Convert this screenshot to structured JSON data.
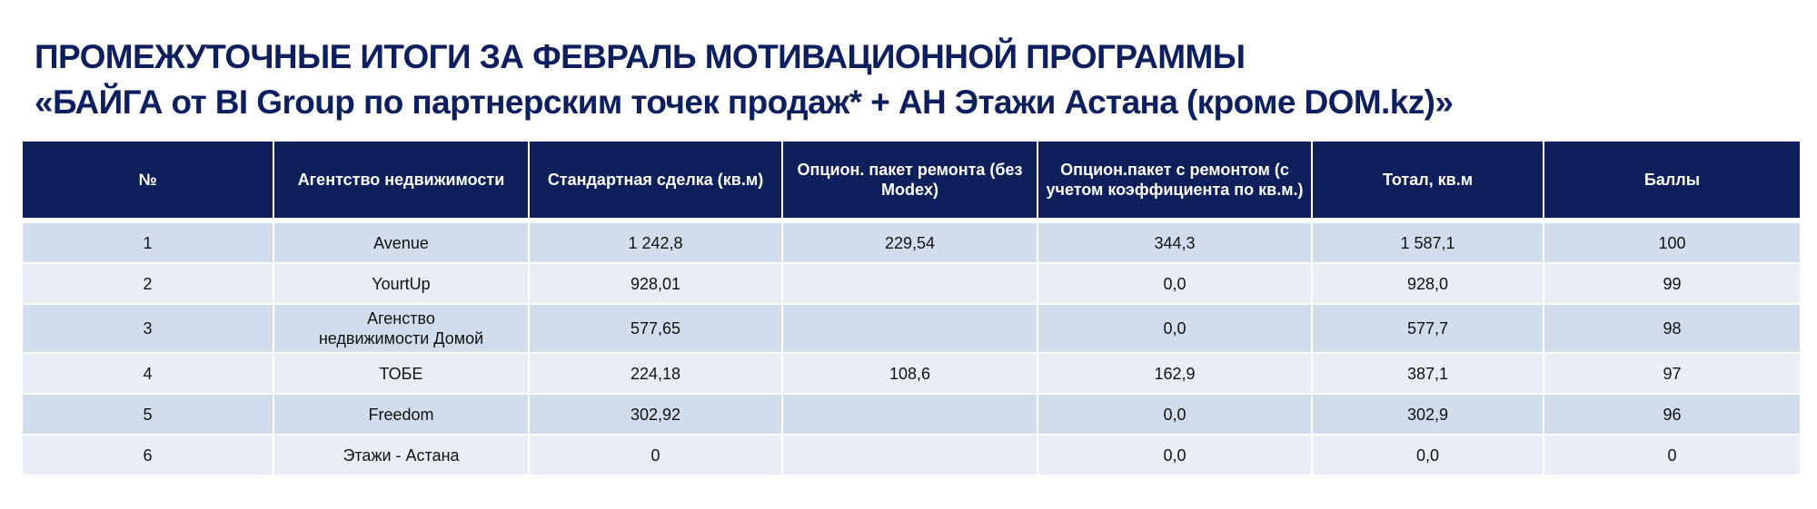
{
  "title": {
    "line1": "ПРОМЕЖУТОЧНЫЕ ИТОГИ ЗА ФЕВРАЛЬ МОТИВАЦИОННОЙ ПРОГРАММЫ",
    "line2": "«БАЙГА  от BI Group по партнерским точек продаж* + АН Этажи Астана (кроме DOM.kz)»"
  },
  "colors": {
    "header_bg": "#0f1f5c",
    "title": "#0d1f5e",
    "row_odd": "#d1ddec",
    "row_even": "#e9eef6"
  },
  "table": {
    "headers": [
      "№",
      "Агентство недвижимости",
      "Стандартная сделка (кв.м)",
      "Опцион. пакет ремонта (без Modex)",
      "Опцион.пакет с ремонтом (с учетом коэффициента по кв.м.)",
      "Тотал, кв.м",
      "Баллы"
    ],
    "rows": [
      [
        "1",
        "Avenue",
        "1 242,8",
        "229,54",
        "344,3",
        "1 587,1",
        "100"
      ],
      [
        "2",
        "YourtUp",
        "928,01",
        "",
        "0,0",
        "928,0",
        "99"
      ],
      [
        "3",
        "Агенство недвижимости Домой",
        "577,65",
        "",
        "0,0",
        "577,7",
        "98"
      ],
      [
        "4",
        "ТОБЕ",
        "224,18",
        "108,6",
        "162,9",
        "387,1",
        "97"
      ],
      [
        "5",
        "Freedom",
        "302,92",
        "",
        "0,0",
        "302,9",
        "96"
      ],
      [
        "6",
        "Этажи - Астана",
        "0",
        "",
        "0,0",
        "0,0",
        "0"
      ]
    ]
  }
}
